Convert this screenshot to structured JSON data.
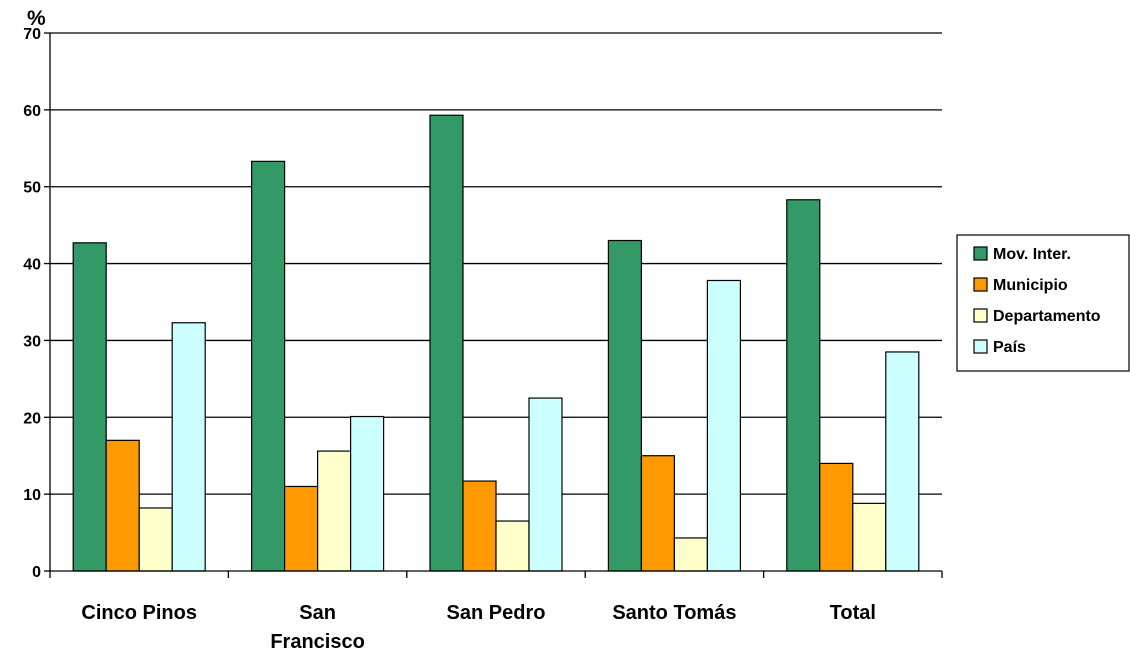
{
  "chart_data": {
    "type": "bar",
    "ylabel": "%",
    "ylim": [
      0,
      70
    ],
    "yticks": [
      0,
      10,
      20,
      30,
      40,
      50,
      60,
      70
    ],
    "grid": true,
    "legend_position": "right",
    "categories": [
      [
        "Cinco Pinos"
      ],
      [
        "San",
        "Francisco"
      ],
      [
        "San Pedro"
      ],
      [
        "Santo Tomás"
      ],
      [
        "Total"
      ]
    ],
    "series": [
      {
        "name": "Mov. Inter.",
        "color": "#339966",
        "values": [
          42.7,
          53.3,
          59.3,
          43.0,
          48.3
        ]
      },
      {
        "name": "Municipio",
        "color": "#FF9900",
        "values": [
          17.0,
          11.0,
          11.7,
          15.0,
          14.0
        ]
      },
      {
        "name": "Departamento",
        "color": "#FFFFCC",
        "values": [
          8.2,
          15.6,
          6.5,
          4.3,
          8.8
        ]
      },
      {
        "name": "País",
        "color": "#CCFFFF",
        "values": [
          32.3,
          20.1,
          22.5,
          37.8,
          28.5
        ]
      }
    ]
  }
}
